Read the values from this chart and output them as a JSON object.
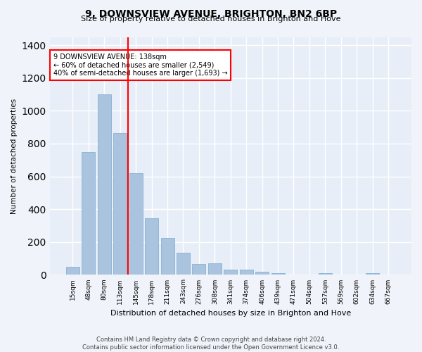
{
  "title": "9, DOWNSVIEW AVENUE, BRIGHTON, BN2 6BP",
  "subtitle": "Size of property relative to detached houses in Brighton and Hove",
  "xlabel": "Distribution of detached houses by size in Brighton and Hove",
  "ylabel": "Number of detached properties",
  "footnote1": "Contains HM Land Registry data © Crown copyright and database right 2024.",
  "footnote2": "Contains public sector information licensed under the Open Government Licence v3.0.",
  "bar_labels": [
    "15sqm",
    "48sqm",
    "80sqm",
    "113sqm",
    "145sqm",
    "178sqm",
    "211sqm",
    "243sqm",
    "276sqm",
    "308sqm",
    "341sqm",
    "374sqm",
    "406sqm",
    "439sqm",
    "471sqm",
    "504sqm",
    "537sqm",
    "569sqm",
    "602sqm",
    "634sqm",
    "667sqm"
  ],
  "bar_values": [
    50,
    750,
    1100,
    865,
    620,
    345,
    225,
    135,
    65,
    70,
    30,
    30,
    20,
    12,
    0,
    0,
    10,
    0,
    0,
    10,
    0
  ],
  "bar_color": "#aac4e0",
  "bar_edge_color": "#7aaad0",
  "vline_x": 3.5,
  "annotation_text": "9 DOWNSVIEW AVENUE: 138sqm\n← 60% of detached houses are smaller (2,549)\n40% of semi-detached houses are larger (1,693) →",
  "vline_color": "red",
  "annotation_box_edge_color": "red",
  "ylim": [
    0,
    1450
  ],
  "background_color": "#f0f4fa",
  "plot_bg_color": "#e8eef8",
  "grid_color": "white"
}
